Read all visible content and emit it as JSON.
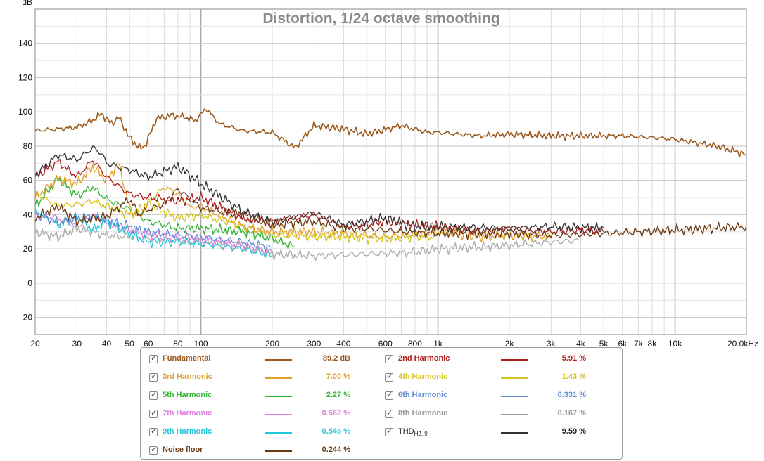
{
  "chart_data": {
    "type": "line",
    "title": "Distortion, 1/24 octave smoothing",
    "ylabel": "dB",
    "xlabel": "",
    "xscale": "log",
    "xlim": [
      20,
      20000
    ],
    "ylim": [
      -30,
      160
    ],
    "grid": true,
    "y_ticks": [
      -20,
      0,
      20,
      40,
      60,
      80,
      100,
      120,
      140
    ],
    "x_ticks": [
      {
        "v": 20,
        "label": "20"
      },
      {
        "v": 30,
        "label": "30"
      },
      {
        "v": 40,
        "label": "40"
      },
      {
        "v": 50,
        "label": "50"
      },
      {
        "v": 60,
        "label": "60"
      },
      {
        "v": 80,
        "label": "80"
      },
      {
        "v": 100,
        "label": "100"
      },
      {
        "v": 200,
        "label": "200"
      },
      {
        "v": 300,
        "label": "300"
      },
      {
        "v": 400,
        "label": "400"
      },
      {
        "v": 600,
        "label": "600"
      },
      {
        "v": 800,
        "label": "800"
      },
      {
        "v": 1000,
        "label": "1k"
      },
      {
        "v": 2000,
        "label": "2k"
      },
      {
        "v": 3000,
        "label": "3k"
      },
      {
        "v": 4000,
        "label": "4k"
      },
      {
        "v": 5000,
        "label": "5k"
      },
      {
        "v": 6000,
        "label": "6k"
      },
      {
        "v": 7000,
        "label": "7k"
      },
      {
        "v": 8000,
        "label": "8k"
      },
      {
        "v": 10000,
        "label": "10k"
      },
      {
        "v": 20000,
        "label": "20.0kHz"
      }
    ],
    "series": [
      {
        "name": "Fundamental",
        "color": "#9c5a1e",
        "x": [
          20,
          25,
          30,
          35,
          38,
          42,
          45,
          50,
          55,
          58,
          65,
          75,
          85,
          95,
          105,
          120,
          150,
          200,
          250,
          300,
          400,
          500,
          700,
          900,
          1000,
          1500,
          2000,
          3000,
          4000,
          6000,
          8000,
          10000,
          15000,
          20000
        ],
        "y": [
          89,
          90,
          91,
          95,
          99,
          93,
          97,
          85,
          79,
          80,
          96,
          98,
          97,
          95,
          102,
          93,
          89,
          88,
          79,
          92,
          90,
          87,
          92,
          88,
          88,
          86,
          87,
          86,
          86,
          86,
          85,
          84,
          80,
          75
        ]
      },
      {
        "name": "2nd Harmonic",
        "color": "#b01c1c",
        "x": [
          20,
          25,
          30,
          35,
          40,
          50,
          60,
          80,
          100,
          150,
          200,
          300,
          400,
          500,
          600,
          800,
          1000,
          1500,
          2000,
          3000,
          4000,
          5000
        ],
        "y": [
          62,
          71,
          62,
          72,
          62,
          52,
          50,
          48,
          50,
          38,
          36,
          40,
          33,
          34,
          36,
          34,
          33,
          30,
          32,
          30,
          31,
          30
        ]
      },
      {
        "name": "3rd Harmonic",
        "color": "#e3a028",
        "x": [
          20,
          25,
          30,
          35,
          40,
          45,
          50,
          55,
          60,
          70,
          80,
          90,
          100,
          150,
          200,
          300,
          400,
          500,
          600,
          800,
          1000,
          1500,
          2000,
          3000
        ],
        "y": [
          50,
          61,
          58,
          68,
          60,
          70,
          44,
          38,
          47,
          56,
          52,
          44,
          45,
          33,
          30,
          30,
          29,
          28,
          27,
          29,
          30,
          27,
          28,
          27
        ]
      },
      {
        "name": "4th Harmonic",
        "color": "#d4c51c",
        "x": [
          20,
          25,
          30,
          35,
          40,
          50,
          60,
          80,
          100,
          150,
          200,
          300,
          400,
          600,
          800,
          1000
        ],
        "y": [
          52,
          45,
          46,
          48,
          45,
          40,
          46,
          38,
          40,
          33,
          28,
          27,
          27,
          26,
          27,
          27
        ]
      },
      {
        "name": "5th Harmonic",
        "color": "#2fb52f",
        "x": [
          20,
          25,
          30,
          35,
          40,
          50,
          60,
          70,
          80,
          100,
          150,
          200,
          250
        ],
        "y": [
          45,
          61,
          51,
          56,
          49,
          43,
          36,
          34,
          32,
          32,
          30,
          26,
          21
        ]
      },
      {
        "name": "6th Harmonic",
        "color": "#5f8ed6",
        "x": [
          20,
          25,
          30,
          35,
          40,
          50,
          60,
          80,
          100,
          150,
          200
        ],
        "y": [
          40,
          35,
          38,
          39,
          37,
          33,
          30,
          28,
          27,
          24,
          21
        ]
      },
      {
        "name": "7th Harmonic",
        "color": "#e07fe0",
        "x": [
          20,
          25,
          30,
          35,
          40,
          50,
          60,
          80,
          100,
          150,
          200
        ],
        "y": [
          40,
          38,
          33,
          40,
          34,
          31,
          28,
          27,
          26,
          22,
          18
        ]
      },
      {
        "name": "8th Harmonic",
        "color": "#aaaaaa",
        "x": [
          20,
          25,
          30,
          40,
          50,
          60,
          80,
          100,
          150,
          200,
          300,
          500,
          800,
          1000,
          2000,
          3000,
          4000
        ],
        "y": [
          30,
          27,
          32,
          28,
          27,
          26,
          25,
          24,
          21,
          17,
          16,
          17,
          18,
          20,
          22,
          24,
          25
        ]
      },
      {
        "name": "9th Harmonic",
        "color": "#1fc9d9",
        "x": [
          20,
          25,
          30,
          35,
          40,
          50,
          60,
          80,
          100,
          150,
          200
        ],
        "y": [
          43,
          34,
          39,
          31,
          36,
          29,
          24,
          24,
          23,
          20,
          16
        ]
      },
      {
        "name": "THD H2..9",
        "color": "#333333",
        "x": [
          20,
          25,
          30,
          35,
          38,
          40,
          50,
          60,
          80,
          100,
          150,
          200,
          300,
          400,
          600,
          800,
          1000,
          2000,
          3000,
          5000
        ],
        "y": [
          63,
          75,
          72,
          79,
          76,
          70,
          66,
          62,
          68,
          58,
          42,
          36,
          41,
          34,
          38,
          33,
          33,
          32,
          33,
          32
        ]
      },
      {
        "name": "Noise floor",
        "color": "#6a3a12",
        "x": [
          20,
          25,
          30,
          40,
          50,
          55,
          60,
          70,
          80,
          100,
          150,
          200,
          300,
          400,
          500,
          700,
          1000,
          2000,
          3000,
          5000,
          10000,
          20000
        ],
        "y": [
          38,
          45,
          36,
          39,
          49,
          40,
          43,
          46,
          55,
          44,
          40,
          34,
          36,
          32,
          32,
          30,
          29,
          29,
          28,
          29,
          31,
          33
        ]
      }
    ]
  },
  "legend": {
    "items": [
      {
        "name": "Fundamental",
        "value": "89.2 dB",
        "color": "#9c5a1e"
      },
      {
        "name": "2nd Harmonic",
        "value": "5.91 %",
        "color": "#b01c1c"
      },
      {
        "name": "3rd Harmonic",
        "value": "7.00 %",
        "color": "#e3a028"
      },
      {
        "name": "4th Harmonic",
        "value": "1.43 %",
        "color": "#d4c51c"
      },
      {
        "name": "5th Harmonic",
        "value": "2.27 %",
        "color": "#2fb52f"
      },
      {
        "name": "6th Harmonic",
        "value": "0.331 %",
        "color": "#5f8ed6"
      },
      {
        "name": "7th Harmonic",
        "value": "0.662 %",
        "color": "#e07fe0"
      },
      {
        "name": "8th Harmonic",
        "value": "0.167 %",
        "color": "#999999"
      },
      {
        "name": "9th Harmonic",
        "value": "0.546 %",
        "color": "#1fc9d9"
      },
      {
        "name": "THD",
        "name_sub": "H2..9",
        "value": "9.59 %",
        "color": "#333333"
      },
      {
        "name": "Noise floor",
        "value": "0.244 %",
        "color": "#6a3a12"
      }
    ]
  }
}
